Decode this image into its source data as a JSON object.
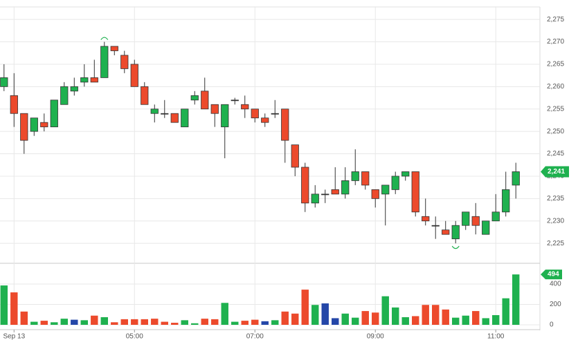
{
  "chart_data": {
    "type": "candlestick",
    "open": [
      2260,
      2258,
      2254,
      2250,
      2252,
      2251,
      2256,
      2259,
      2261,
      2262,
      2262,
      2269,
      2267,
      2265,
      2260,
      2254,
      2254,
      2254,
      2251,
      2257,
      2259,
      2256,
      2251,
      2257,
      2256,
      2255,
      2253,
      2254,
      2255,
      2247,
      2242,
      2234,
      2236,
      2237,
      2236,
      2239,
      2241,
      2237,
      2236,
      2237,
      2240,
      2241,
      2231,
      2229,
      2228,
      2226,
      2229,
      2231,
      2227,
      2230,
      2232,
      2238
    ],
    "high": [
      2265,
      2263,
      2254,
      2253,
      2254,
      2257,
      2261,
      2262,
      2265,
      2266,
      2270,
      2269,
      2268,
      2266,
      2261,
      2256,
      2257,
      2254,
      2255,
      2259,
      2262,
      2256,
      2256,
      2257.5,
      2258,
      2255,
      2254,
      2257,
      2255,
      2247,
      2243,
      2238,
      2237,
      2242,
      2242,
      2246,
      2241,
      2237,
      2238,
      2241,
      2241,
      2241,
      2235,
      2231,
      2230,
      2230,
      2232,
      2234,
      2230,
      2236,
      2241,
      2243
    ],
    "low": [
      2259,
      2251,
      2245,
      2249,
      2250,
      2251,
      2256,
      2258,
      2260,
      2261,
      2262,
      2267,
      2263,
      2260,
      2256,
      2252,
      2253,
      2252,
      2251,
      2256,
      2255,
      2251,
      2244,
      2256,
      2253,
      2252,
      2251,
      2253,
      2243,
      2240,
      2232,
      2233,
      2234,
      2236,
      2235,
      2238,
      2237,
      2233,
      2229,
      2236,
      2239,
      2231,
      2229,
      2226,
      2227,
      2225,
      2228,
      2227,
      2227,
      2230,
      2231,
      2235
    ],
    "close": [
      2262,
      2254,
      2248,
      2253,
      2251,
      2257,
      2260,
      2260,
      2262,
      2261,
      2269,
      2268,
      2264,
      2260,
      2256,
      2255,
      2254,
      2252,
      2255,
      2258,
      2255,
      2254,
      2256,
      2257,
      2255,
      2253,
      2252,
      2254,
      2248,
      2242,
      2234,
      2236,
      2236,
      2236,
      2239,
      2241,
      2238,
      2235,
      2238,
      2240,
      2241,
      2232,
      2230,
      2229,
      2227,
      2229,
      2232,
      2229,
      2230,
      2232,
      2237,
      2241
    ],
    "up_color": "#1fb14f",
    "down_color": "#ec4a2c",
    "doji_color": "#333333",
    "ylim": [
      2220.7,
      2277.8
    ],
    "yticks": [
      {
        "value": 2225,
        "label": "2,225"
      },
      {
        "value": 2230,
        "label": "2,230"
      },
      {
        "value": 2235,
        "label": "2,235"
      },
      {
        "value": 2240,
        "label": "2,240"
      },
      {
        "value": 2245,
        "label": "2,245"
      },
      {
        "value": 2250,
        "label": "2,250"
      },
      {
        "value": 2255,
        "label": "2,255"
      },
      {
        "value": 2260,
        "label": "2,260"
      },
      {
        "value": 2265,
        "label": "2,265"
      },
      {
        "value": 2270,
        "label": "2,270"
      },
      {
        "value": 2275,
        "label": "2,275"
      }
    ],
    "xlim": [
      -0.4,
      53.4
    ],
    "xticks": [
      {
        "value": 1,
        "label": "Sep 13"
      },
      {
        "value": 13,
        "label": "05:00"
      },
      {
        "value": 25,
        "label": "07:00"
      },
      {
        "value": 37,
        "label": "09:00"
      },
      {
        "value": 49,
        "label": "11:00"
      }
    ],
    "last_price": {
      "value": 2241,
      "label": "2,241"
    },
    "volume": [
      386,
      318,
      130,
      30,
      40,
      25,
      60,
      50,
      45,
      90,
      75,
      25,
      55,
      55,
      55,
      60,
      30,
      20,
      45,
      15,
      60,
      55,
      215,
      30,
      40,
      50,
      35,
      45,
      130,
      110,
      345,
      195,
      210,
      65,
      110,
      70,
      135,
      120,
      280,
      170,
      75,
      85,
      195,
      195,
      150,
      70,
      90,
      135,
      65,
      95,
      260,
      494
    ],
    "volume_colors": [
      "#1fb14f",
      "#ec4a2c",
      "#ec4a2c",
      "#1fb14f",
      "#ec4a2c",
      "#1fb14f",
      "#1fb14f",
      "#2547a8",
      "#1fb14f",
      "#ec4a2c",
      "#1fb14f",
      "#ec4a2c",
      "#ec4a2c",
      "#ec4a2c",
      "#ec4a2c",
      "#ec4a2c",
      "#ec4a2c",
      "#ec4a2c",
      "#1fb14f",
      "#1fb14f",
      "#ec4a2c",
      "#ec4a2c",
      "#1fb14f",
      "#1fb14f",
      "#ec4a2c",
      "#ec4a2c",
      "#2547a8",
      "#1fb14f",
      "#ec4a2c",
      "#ec4a2c",
      "#ec4a2c",
      "#1fb14f",
      "#2547a8",
      "#2547a8",
      "#1fb14f",
      "#1fb14f",
      "#ec4a2c",
      "#ec4a2c",
      "#1fb14f",
      "#1fb14f",
      "#1fb14f",
      "#ec4a2c",
      "#ec4a2c",
      "#ec4a2c",
      "#ec4a2c",
      "#1fb14f",
      "#1fb14f",
      "#ec4a2c",
      "#1fb14f",
      "#1fb14f",
      "#1fb14f",
      "#1fb14f"
    ],
    "volume_ylim": [
      0,
      576
    ],
    "volume_yticks": [
      0,
      200,
      400
    ],
    "last_volume": 494,
    "grid": true
  }
}
